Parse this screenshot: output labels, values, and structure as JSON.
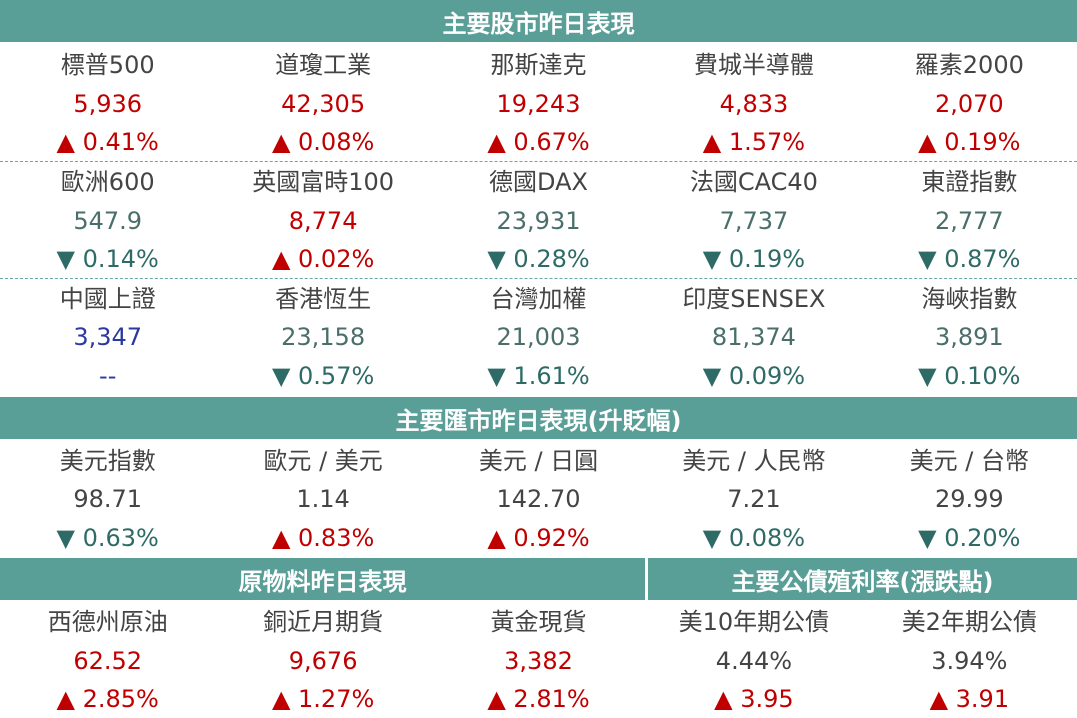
{
  "stocks": {
    "title": "主要股市昨日表現",
    "groups": [
      {
        "labels": [
          "標普500",
          "道瓊工業",
          "那斯達克",
          "費城半導體",
          "羅素2000"
        ],
        "values": [
          "5,936",
          "42,305",
          "19,243",
          "4,833",
          "2,070"
        ],
        "changes": [
          "▲ 0.41%",
          "▲ 0.08%",
          "▲ 0.67%",
          "▲ 1.57%",
          "▲ 0.19%"
        ]
      },
      {
        "labels": [
          "歐洲600",
          "英國富時100",
          "德國DAX",
          "法國CAC40",
          "東證指數"
        ],
        "values": [
          "547.9",
          "8,774",
          "23,931",
          "7,737",
          "2,777"
        ],
        "changes": [
          "▼ 0.14%",
          "▲ 0.02%",
          "▼ 0.28%",
          "▼ 0.19%",
          "▼ 0.87%"
        ]
      },
      {
        "labels": [
          "中國上證",
          "香港恆生",
          "台灣加權",
          "印度SENSEX",
          "海峽指數"
        ],
        "values": [
          "3,347",
          "23,158",
          "21,003",
          "81,374",
          "3,891"
        ],
        "changes": [
          "--",
          "▼ 0.57%",
          "▼ 1.61%",
          "▼ 0.09%",
          "▼ 0.10%"
        ]
      }
    ]
  },
  "fx": {
    "title": "主要匯市昨日表現(升貶幅)",
    "labels": [
      "美元指數",
      "歐元 / 美元",
      "美元 / 日圓",
      "美元 / 人民幣",
      "美元 / 台幣"
    ],
    "values": [
      "98.71",
      "1.14",
      "142.70",
      "7.21",
      "29.99"
    ],
    "changes": [
      "▼ 0.63%",
      "▲ 0.83%",
      "▲ 0.92%",
      "▼ 0.08%",
      "▼ 0.20%"
    ]
  },
  "commodities": {
    "title": "原物料昨日表現",
    "labels": [
      "西德州原油",
      "銅近月期貨",
      "黃金現貨"
    ],
    "values": [
      "62.52",
      "9,676",
      "3,382"
    ],
    "changes": [
      "▲ 2.85%",
      "▲ 1.27%",
      "▲ 2.81%"
    ]
  },
  "bonds": {
    "title": "主要公債殖利率(漲跌點)",
    "labels": [
      "美10年期公債",
      "美2年期公債"
    ],
    "values": [
      "4.44%",
      "3.94%"
    ],
    "changes": [
      "▲ 3.95",
      "▲ 3.91"
    ]
  },
  "colors": {
    "header_bg": "#5a9e98",
    "up": "#c00000",
    "down": "#2e6b66",
    "flat": "#2a3a9e"
  }
}
